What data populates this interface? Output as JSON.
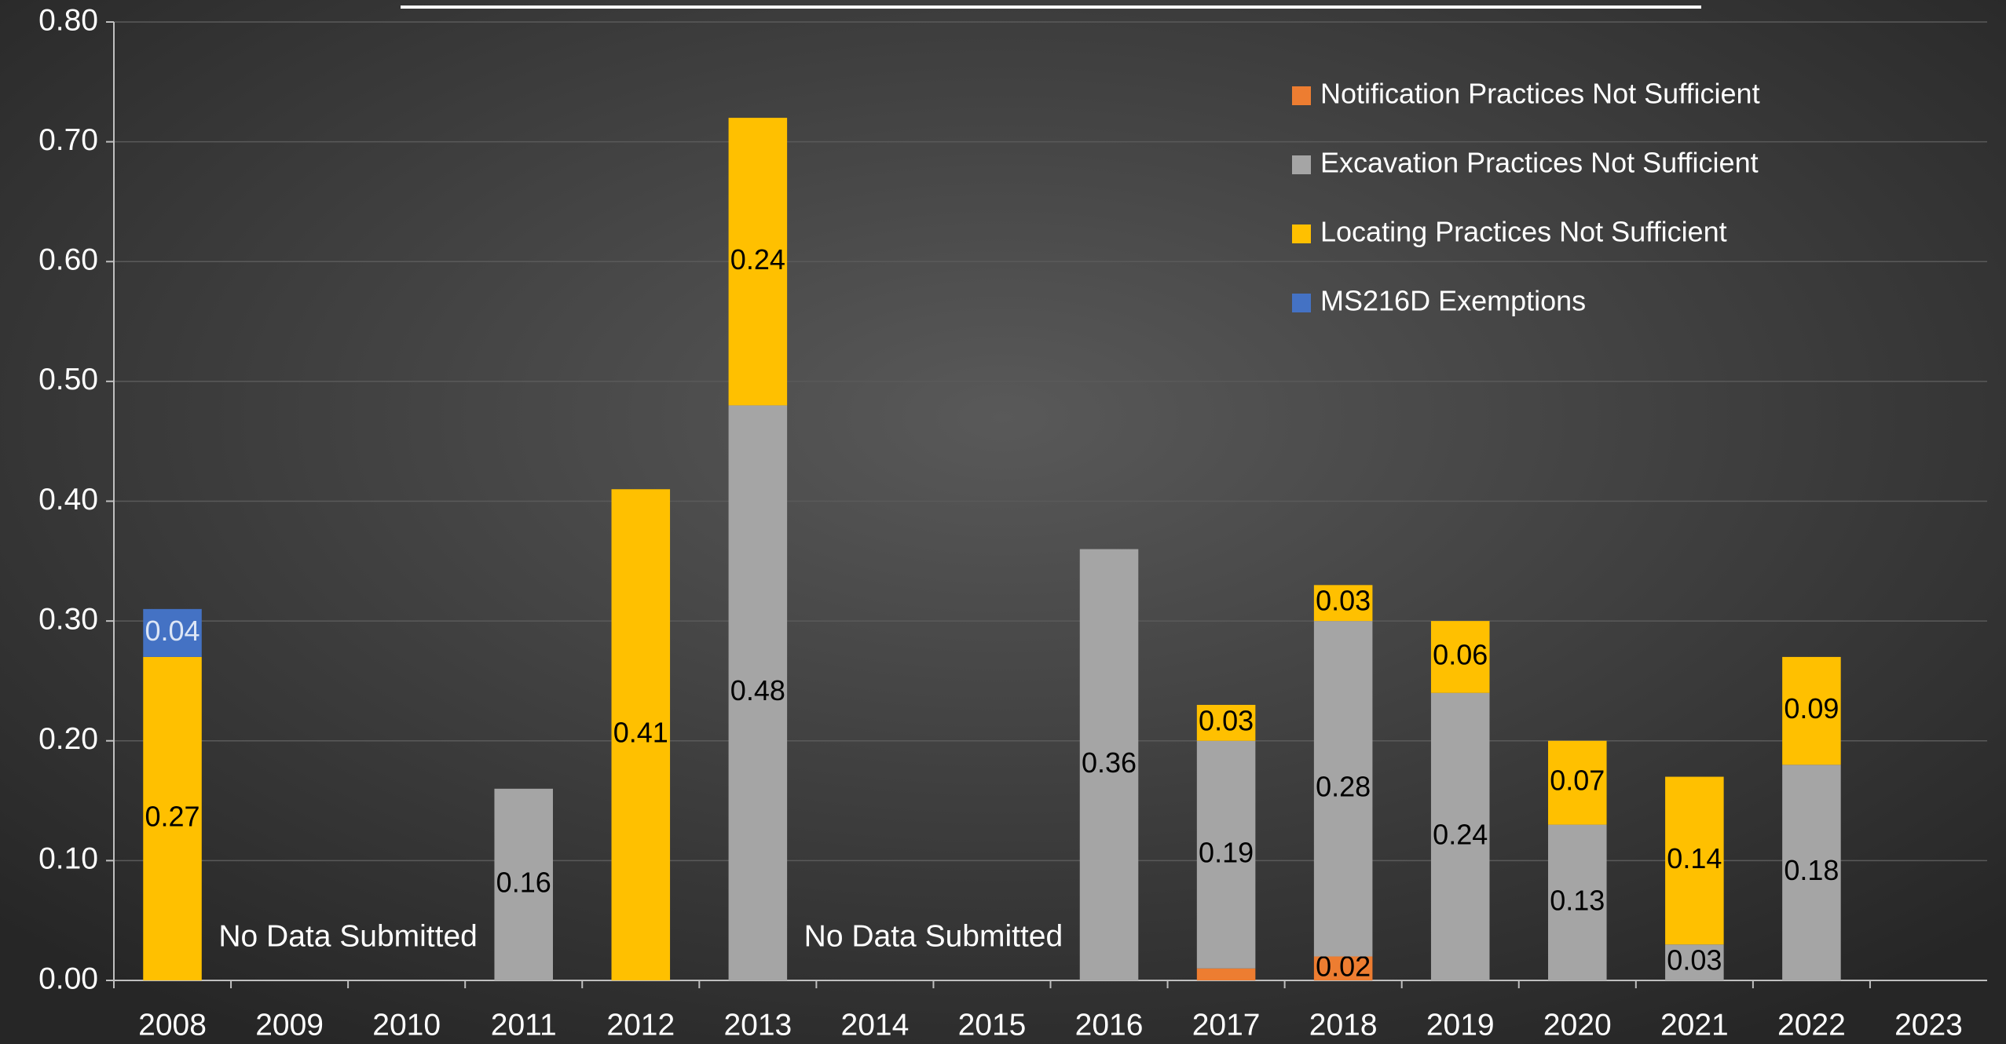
{
  "chart_data": {
    "type": "stacked-bar",
    "categories": [
      "2008",
      "2009",
      "2010",
      "2011",
      "2012",
      "2013",
      "2014",
      "2015",
      "2016",
      "2017",
      "2018",
      "2019",
      "2020",
      "2021",
      "2022",
      "2023"
    ],
    "series": [
      {
        "name": "Notification Practices Not Sufficient",
        "color": "#ED7D31",
        "values": [
          null,
          null,
          null,
          null,
          null,
          null,
          null,
          null,
          null,
          0.01,
          0.02,
          null,
          null,
          null,
          null,
          null
        ],
        "value_labels": [
          null,
          null,
          null,
          null,
          null,
          null,
          null,
          null,
          null,
          null,
          "0.02",
          null,
          null,
          null,
          null,
          null
        ]
      },
      {
        "name": "Excavation Practices Not Sufficient",
        "color": "#A5A5A5",
        "values": [
          null,
          null,
          null,
          0.16,
          null,
          0.48,
          null,
          null,
          0.36,
          0.19,
          0.28,
          0.24,
          0.13,
          0.03,
          0.18,
          null
        ],
        "value_labels": [
          null,
          null,
          null,
          "0.16",
          null,
          "0.48",
          null,
          null,
          "0.36",
          "0.19",
          "0.28",
          "0.24",
          "0.13",
          "0.03",
          "0.18",
          null
        ]
      },
      {
        "name": "Locating Practices Not Sufficient",
        "color": "#FFC000",
        "values": [
          0.27,
          null,
          null,
          null,
          0.41,
          0.24,
          null,
          null,
          null,
          0.03,
          0.03,
          0.06,
          0.07,
          0.14,
          0.09,
          null
        ],
        "value_labels": [
          "0.27",
          null,
          null,
          null,
          "0.41",
          "0.24",
          null,
          null,
          null,
          "0.03",
          "0.03",
          "0.06",
          "0.07",
          "0.14",
          "0.09",
          null
        ]
      },
      {
        "name": "MS216D Exemptions",
        "color": "#4472C4",
        "values": [
          0.04,
          null,
          null,
          null,
          null,
          null,
          null,
          null,
          null,
          null,
          null,
          null,
          null,
          null,
          null,
          null
        ],
        "value_labels": [
          "0.04",
          null,
          null,
          null,
          null,
          null,
          null,
          null,
          null,
          null,
          null,
          null,
          null,
          null,
          null,
          null
        ]
      }
    ],
    "annotations": [
      "No Data Submitted",
      "No Data Submitted"
    ],
    "ylim": [
      0,
      0.8
    ],
    "yticks": [
      {
        "value": 0,
        "label": "0.00"
      },
      {
        "value": 0.1,
        "label": "0.10"
      },
      {
        "value": 0.2,
        "label": "0.20"
      },
      {
        "value": 0.3,
        "label": "0.30"
      },
      {
        "value": 0.4,
        "label": "0.40"
      },
      {
        "value": 0.5,
        "label": "0.50"
      },
      {
        "value": 0.6,
        "label": "0.60"
      },
      {
        "value": 0.7,
        "label": "0.70"
      },
      {
        "value": 0.8,
        "label": "0.80"
      }
    ],
    "grid": true,
    "legend": "top-right"
  }
}
